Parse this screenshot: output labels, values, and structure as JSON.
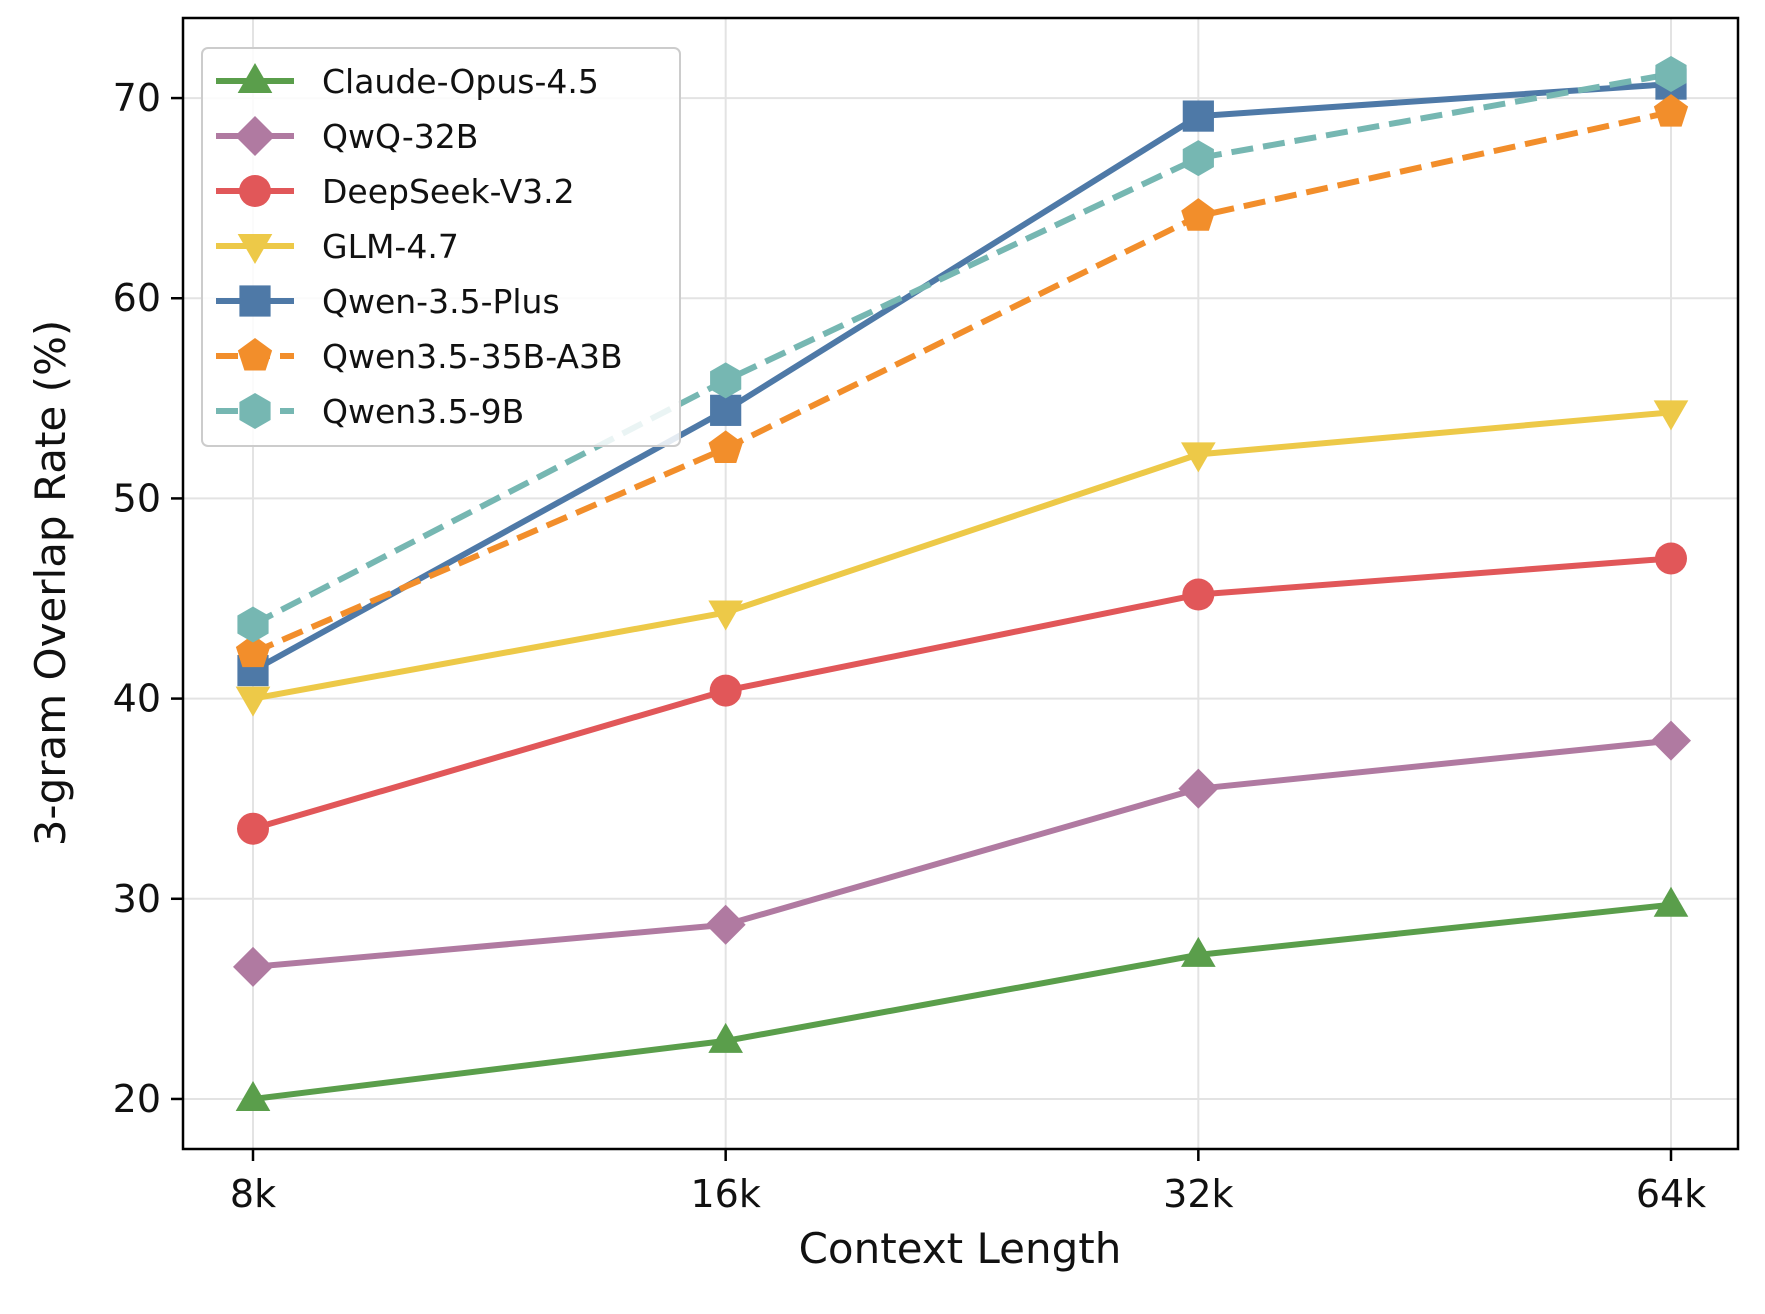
{
  "chart_data": {
    "type": "line",
    "xlabel": "Context Length",
    "ylabel": "3-gram Overlap Rate (%)",
    "categories": [
      "8k",
      "16k",
      "32k",
      "64k"
    ],
    "ylim": [
      17.5,
      74
    ],
    "yticks": [
      20,
      30,
      40,
      50,
      60,
      70
    ],
    "grid": true,
    "legend_position": "top-left",
    "series": [
      {
        "name": "Claude-Opus-4.5",
        "values": [
          20.0,
          22.9,
          27.2,
          29.7
        ],
        "color": "#5a9e4b",
        "marker": "triangle-up",
        "dashed": false
      },
      {
        "name": "QwQ-32B",
        "values": [
          26.6,
          28.7,
          35.5,
          37.9
        ],
        "color": "#b07aa1",
        "marker": "diamond",
        "dashed": false
      },
      {
        "name": "DeepSeek-V3.2",
        "values": [
          33.5,
          40.4,
          45.2,
          47.0
        ],
        "color": "#e15759",
        "marker": "circle",
        "dashed": false
      },
      {
        "name": "GLM-4.7",
        "values": [
          40.0,
          44.3,
          52.2,
          54.3
        ],
        "color": "#edc948",
        "marker": "triangle-down",
        "dashed": false
      },
      {
        "name": "Qwen-3.5-Plus",
        "values": [
          41.4,
          54.4,
          69.1,
          70.7
        ],
        "color": "#4e79a7",
        "marker": "square",
        "dashed": false
      },
      {
        "name": "Qwen3.5-35B-A3B",
        "values": [
          42.3,
          52.5,
          64.1,
          69.3
        ],
        "color": "#f28e2b",
        "marker": "pentagon",
        "dashed": true
      },
      {
        "name": "Qwen3.5-9B",
        "values": [
          43.7,
          55.9,
          67.0,
          71.2
        ],
        "color": "#76b7b2",
        "marker": "hexagon",
        "dashed": true
      }
    ]
  }
}
